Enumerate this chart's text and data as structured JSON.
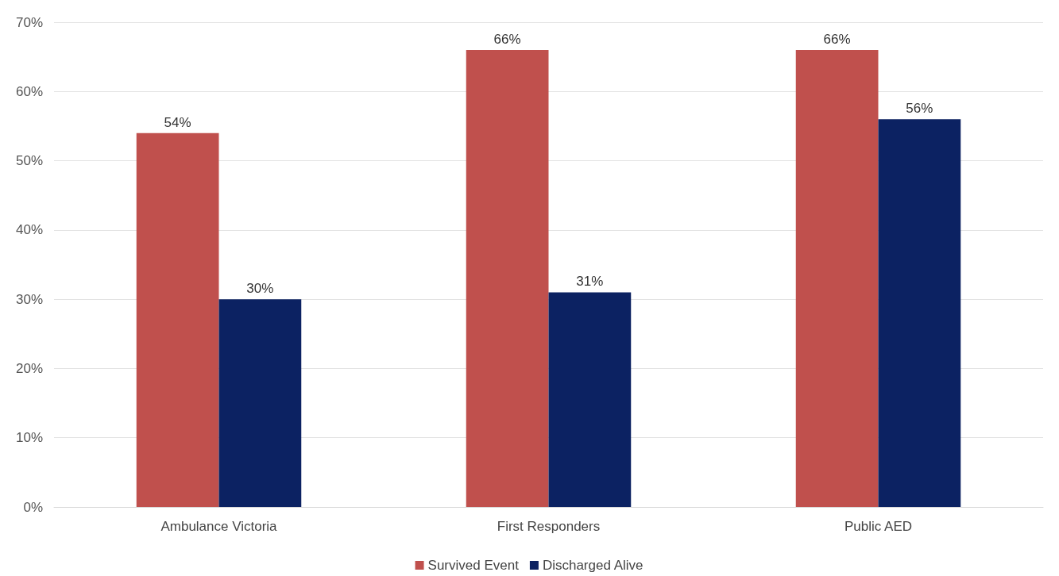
{
  "chart_data": {
    "type": "bar",
    "categories": [
      "Ambulance Victoria",
      "First Responders",
      "Public AED"
    ],
    "series": [
      {
        "name": "Survived Event",
        "color": "#c0504d",
        "values": [
          54,
          66,
          66
        ],
        "value_labels": [
          "54%",
          "66%",
          "66%"
        ]
      },
      {
        "name": "Discharged Alive",
        "color": "#0c2262",
        "values": [
          30,
          31,
          56
        ],
        "value_labels": [
          "30%",
          "31%",
          "56%"
        ]
      }
    ],
    "ylim": [
      0,
      70
    ],
    "yticks": [
      {
        "value": 0,
        "label": "0%"
      },
      {
        "value": 10,
        "label": "10%"
      },
      {
        "value": 20,
        "label": "20%"
      },
      {
        "value": 30,
        "label": "30%"
      },
      {
        "value": 40,
        "label": "40%"
      },
      {
        "value": 50,
        "label": "50%"
      },
      {
        "value": 60,
        "label": "60%"
      },
      {
        "value": 70,
        "label": "70%"
      }
    ],
    "grid": "y",
    "legend": "bottom"
  }
}
